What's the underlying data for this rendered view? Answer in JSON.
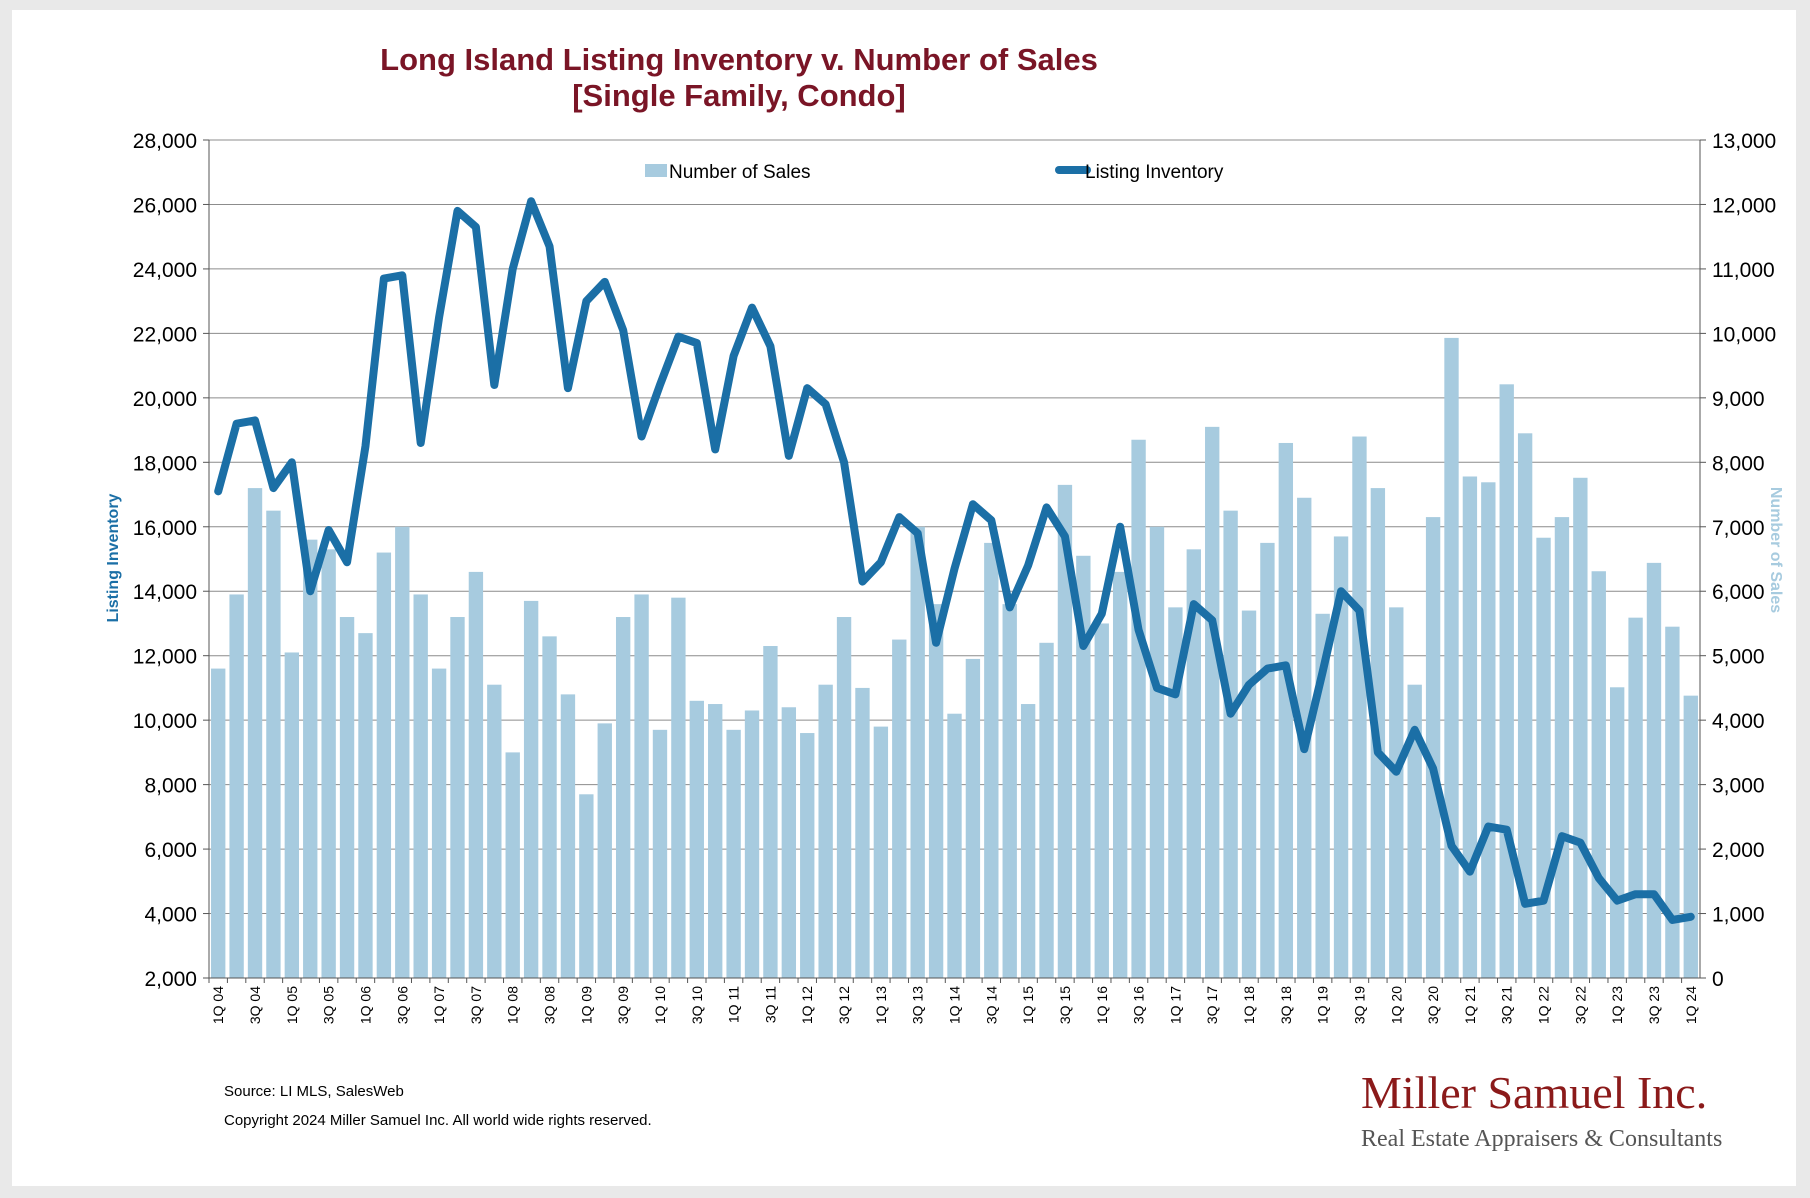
{
  "chart_data": {
    "type": "bar+line",
    "title": "Long Island Listing Inventory v. Number of Sales",
    "subtitle": "[Single Family, Condo]",
    "ylabel_left": "Listing Inventory",
    "ylabel_right": "Number of Sales",
    "ylim_left": [
      2000,
      28000
    ],
    "ylim_right": [
      0,
      13000
    ],
    "yticks_left": [
      "2,000",
      "4,000",
      "6,000",
      "8,000",
      "10,000",
      "12,000",
      "14,000",
      "16,000",
      "18,000",
      "20,000",
      "22,000",
      "24,000",
      "26,000",
      "28,000"
    ],
    "yticks_right": [
      "0",
      "1,000",
      "2,000",
      "3,000",
      "4,000",
      "5,000",
      "6,000",
      "7,000",
      "8,000",
      "9,000",
      "10,000",
      "11,000",
      "12,000",
      "13,000"
    ],
    "grid": true,
    "legend": {
      "position": "top",
      "sales_label": "Number of Sales",
      "inventory_label": "Listing Inventory"
    },
    "categories": [
      "1Q 04",
      "2Q 04",
      "3Q 04",
      "4Q 04",
      "1Q 05",
      "2Q 05",
      "3Q 05",
      "4Q 05",
      "1Q 06",
      "2Q 06",
      "3Q 06",
      "4Q 06",
      "1Q 07",
      "2Q 07",
      "3Q 07",
      "4Q 07",
      "1Q 08",
      "2Q 08",
      "3Q 08",
      "4Q 08",
      "1Q 09",
      "2Q 09",
      "3Q 09",
      "4Q 09",
      "1Q 10",
      "2Q 10",
      "3Q 10",
      "4Q 10",
      "1Q 11",
      "2Q 11",
      "3Q 11",
      "4Q 11",
      "1Q 12",
      "2Q 12",
      "3Q 12",
      "4Q 12",
      "1Q 13",
      "2Q 13",
      "3Q 13",
      "4Q 13",
      "1Q 14",
      "2Q 14",
      "3Q 14",
      "4Q 14",
      "1Q 15",
      "2Q 15",
      "3Q 15",
      "4Q 15",
      "1Q 16",
      "2Q 16",
      "3Q 16",
      "4Q 16",
      "1Q 17",
      "2Q 17",
      "3Q 17",
      "4Q 17",
      "1Q 18",
      "2Q 18",
      "3Q 18",
      "4Q 18",
      "1Q 19",
      "2Q 19",
      "3Q 19",
      "4Q 19",
      "1Q 20",
      "2Q 20",
      "3Q 20",
      "4Q 20",
      "1Q 21",
      "2Q 21",
      "3Q 21",
      "4Q 21",
      "1Q 22",
      "2Q 22",
      "3Q 22",
      "4Q 22",
      "1Q 23",
      "2Q 23",
      "3Q 23",
      "4Q 23",
      "1Q 24"
    ],
    "x_tick_labels_every": 2,
    "series": [
      {
        "name": "Number of Sales",
        "type": "bar",
        "axis": "right",
        "color": "#a7cbdf",
        "values": [
          4800,
          5950,
          7600,
          7250,
          5050,
          6800,
          6650,
          5600,
          5350,
          6600,
          7000,
          5950,
          4800,
          5600,
          6300,
          4550,
          3500,
          5850,
          5300,
          4400,
          2850,
          3950,
          5600,
          5950,
          3850,
          5900,
          4300,
          4250,
          3850,
          4150,
          5150,
          4200,
          3800,
          4550,
          5600,
          4500,
          3900,
          5250,
          7000,
          5800,
          4100,
          4950,
          6750,
          5800,
          4250,
          5200,
          7650,
          6550,
          5500,
          6300,
          8350,
          7000,
          5750,
          6650,
          8550,
          7250,
          5700,
          6750,
          8300,
          7450,
          5650,
          6850,
          8400,
          7600,
          5750,
          4550,
          7150,
          9930,
          7780,
          7690,
          9210,
          8450,
          6830,
          7150,
          7760,
          6310,
          4510,
          5590,
          6440,
          5450,
          4380
        ]
      },
      {
        "name": "Listing Inventory",
        "type": "line",
        "axis": "left",
        "color": "#1b6fa6",
        "values": [
          17100,
          19200,
          19300,
          17200,
          18000,
          14000,
          15900,
          14900,
          18500,
          23700,
          23800,
          18600,
          22500,
          25800,
          25300,
          20400,
          24000,
          26100,
          24700,
          20300,
          23000,
          23600,
          22100,
          18800,
          20400,
          21900,
          21700,
          18400,
          21300,
          22800,
          21600,
          18200,
          20300,
          19800,
          18000,
          14300,
          14900,
          16300,
          15800,
          12400,
          14700,
          16700,
          16200,
          13500,
          14800,
          16600,
          15700,
          12300,
          13300,
          16000,
          12800,
          11000,
          10800,
          13600,
          13100,
          10200,
          11100,
          11600,
          11700,
          9100,
          11500,
          14000,
          13400,
          9000,
          8400,
          9700,
          8500,
          6100,
          5300,
          6700,
          6600,
          4300,
          4400,
          6400,
          6200,
          5100,
          4400,
          4600,
          4600,
          3800,
          3900
        ]
      }
    ]
  },
  "footer": {
    "source": "Source: LI MLS, SalesWeb",
    "copyright": "Copyright 2024 Miller Samuel Inc.  All world wide rights reserved."
  },
  "logo": {
    "name": "Miller Samuel Inc.",
    "tagline": "Real Estate Appraisers & Consultants"
  }
}
